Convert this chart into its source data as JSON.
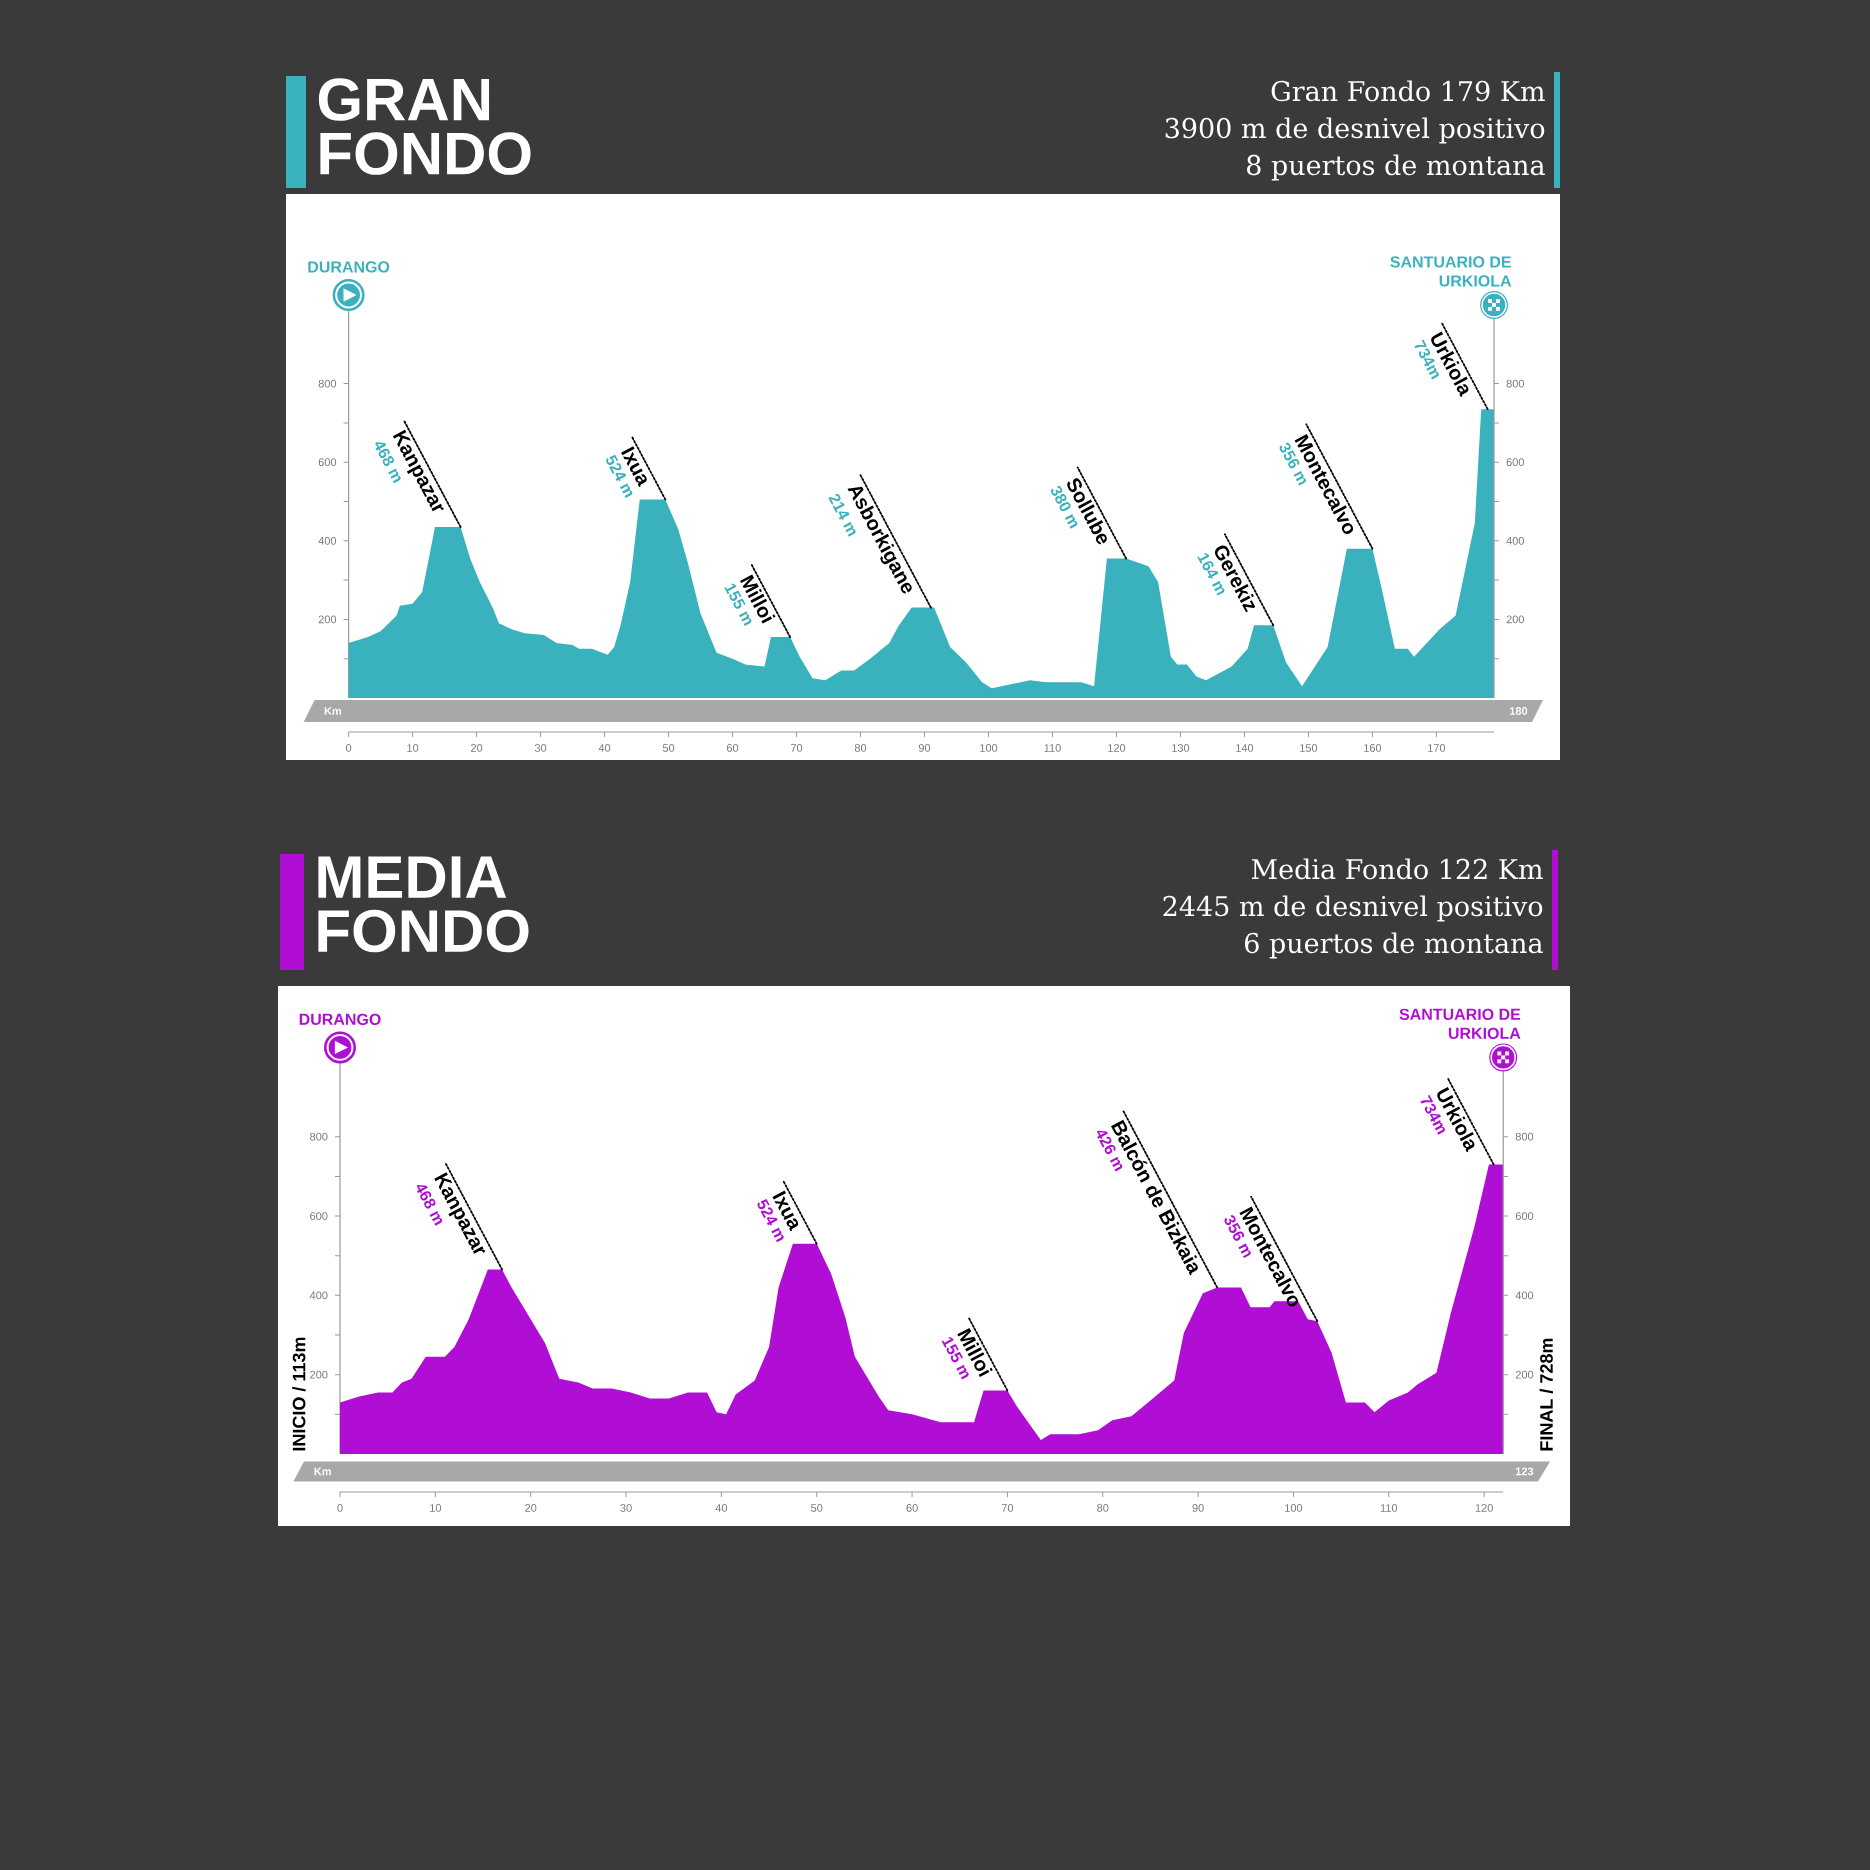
{
  "chart_data": [
    {
      "type": "area",
      "title": "GRAN FONDO",
      "xlabel": "Km",
      "color": "#3ab2be",
      "xlim": [
        0,
        179
      ],
      "xticks": [
        0,
        10,
        20,
        30,
        40,
        50,
        60,
        70,
        80,
        90,
        100,
        110,
        120,
        130,
        140,
        150,
        160,
        170
      ],
      "ylim": [
        0,
        1000
      ],
      "yticks": [
        {
          "value": 100,
          "label": null
        },
        200,
        {
          "value": 300,
          "label": null
        },
        400,
        {
          "value": 500,
          "label": null
        },
        600,
        {
          "value": 700,
          "label": null
        },
        800
      ],
      "y2lim": [
        0,
        1000
      ],
      "y2ticks": [
        {
          "value": 100,
          "label": null
        },
        200,
        {
          "value": 300,
          "label": null
        },
        400,
        {
          "value": 500,
          "label": null
        },
        600,
        {
          "value": 700,
          "label": null
        },
        800
      ],
      "x": [
        0,
        3,
        5,
        7.5,
        8,
        10,
        11.5,
        13.5,
        17.5,
        19,
        20.5,
        22.5,
        23.5,
        25.5,
        27.5,
        30.5,
        32.5,
        35,
        36,
        38,
        40.5,
        41.5,
        42.5,
        44,
        45.5,
        49.5,
        51.5,
        53,
        55,
        57.5,
        60,
        62,
        65,
        66,
        69,
        70.5,
        72.5,
        74.5,
        77,
        79,
        81.5,
        84.5,
        86,
        88,
        91.5,
        94,
        96.5,
        99,
        100.5,
        103.5,
        106.5,
        109,
        114.5,
        116.5,
        118.5,
        121.5,
        125,
        126.5,
        128.5,
        129.5,
        131,
        132.5,
        134,
        138,
        140.5,
        141.5,
        144.5,
        146.5,
        149,
        151,
        153,
        156,
        160,
        161.5,
        163.5,
        165.5,
        166.5,
        168.5,
        170.5,
        173,
        176,
        177,
        179
      ],
      "values": [
        140,
        155,
        170,
        210,
        235,
        240,
        270,
        435,
        435,
        355,
        295,
        230,
        190,
        175,
        165,
        160,
        140,
        135,
        125,
        125,
        110,
        130,
        185,
        295,
        505,
        505,
        430,
        345,
        215,
        115,
        100,
        85,
        80,
        155,
        155,
        105,
        50,
        45,
        70,
        70,
        100,
        140,
        185,
        230,
        230,
        130,
        90,
        40,
        25,
        35,
        45,
        40,
        40,
        30,
        355,
        355,
        335,
        295,
        105,
        85,
        85,
        55,
        45,
        80,
        125,
        185,
        185,
        90,
        30,
        80,
        130,
        380,
        380,
        275,
        125,
        125,
        105,
        140,
        175,
        210,
        445,
        735,
        735
      ],
      "annotations": [
        "Gran Fondo 179 Km",
        "3900 m de desnivel positivo",
        "8 puertos de montana",
        "DURANGO",
        "SANTUARIO DE URKIOLA",
        "180",
        {
          "text": "Kanpazar",
          "x": 17.5,
          "y": 435
        },
        "468 m",
        {
          "text": "Ixua",
          "x": 49.5,
          "y": 505
        },
        "524 m",
        {
          "text": "Milloi",
          "x": 69,
          "y": 155
        },
        "155 m",
        {
          "text": "Asborkigane",
          "x": 91,
          "y": 230
        },
        "214 m",
        {
          "text": "Sollube",
          "x": 121.5,
          "y": 355
        },
        "380 m",
        {
          "text": "Gerekiz",
          "x": 144.5,
          "y": 185
        },
        "164 m",
        {
          "text": "Montecalvo",
          "x": 160,
          "y": 380
        },
        "356 m",
        {
          "text": "Urkiola",
          "x": 178,
          "y": 735
        },
        "734m"
      ]
    },
    {
      "type": "area",
      "title": "MEDIA FONDO",
      "xlabel": "Km",
      "ylabel": "INICIO / 113m",
      "y2label": "FINAL / 728m",
      "color": "#b00ed4",
      "xlim": [
        0,
        122
      ],
      "xticks": [
        0,
        10,
        20,
        30,
        40,
        50,
        60,
        70,
        80,
        90,
        100,
        110,
        120
      ],
      "ylim": [
        0,
        1000
      ],
      "yticks": [
        {
          "value": 100,
          "label": null
        },
        200,
        {
          "value": 300,
          "label": null
        },
        400,
        {
          "value": 500,
          "label": null
        },
        600,
        {
          "value": 700,
          "label": null
        },
        800
      ],
      "y2lim": [
        0,
        1000
      ],
      "y2ticks": [
        {
          "value": 100,
          "label": null
        },
        200,
        {
          "value": 300,
          "label": null
        },
        400,
        {
          "value": 500,
          "label": null
        },
        600,
        {
          "value": 700,
          "label": null
        },
        800
      ],
      "x": [
        0,
        2,
        4,
        5.5,
        6.5,
        7.5,
        9,
        11,
        12,
        13.5,
        15.5,
        17,
        18,
        20,
        21.5,
        23,
        25,
        26.5,
        28.5,
        30.5,
        32.5,
        34.5,
        36.5,
        38.5,
        39.5,
        40.5,
        41.5,
        43.5,
        45,
        46,
        47.5,
        50,
        51.5,
        53,
        54,
        56.5,
        57.5,
        60,
        63,
        66.5,
        67.5,
        70,
        71,
        73.5,
        74.5,
        77.5,
        79.5,
        81,
        83,
        85,
        87.5,
        88.5,
        90.5,
        92,
        94.5,
        95.5,
        97.5,
        98,
        100.5,
        101.5,
        102.5,
        104,
        105.5,
        107.5,
        108.5,
        110,
        112,
        113,
        115,
        116.5,
        119,
        120.5,
        122
      ],
      "values": [
        130,
        145,
        155,
        155,
        180,
        190,
        245,
        245,
        270,
        340,
        465,
        465,
        420,
        340,
        280,
        190,
        180,
        165,
        165,
        155,
        140,
        140,
        155,
        155,
        105,
        100,
        150,
        185,
        270,
        420,
        530,
        530,
        455,
        345,
        245,
        145,
        110,
        100,
        80,
        80,
        160,
        160,
        120,
        35,
        50,
        50,
        60,
        85,
        95,
        135,
        185,
        305,
        405,
        420,
        420,
        370,
        370,
        385,
        385,
        340,
        335,
        255,
        130,
        130,
        105,
        135,
        155,
        175,
        205,
        355,
        575,
        730,
        730
      ],
      "annotations": [
        "Media Fondo 122 Km",
        "2445 m de desnivel positivo",
        "6 puertos de montana",
        "DURANGO",
        "SANTUARIO DE URKIOLA",
        "123",
        {
          "text": "Kanpazar",
          "x": 17,
          "y": 465
        },
        "468 m",
        {
          "text": "Ixua",
          "x": 50,
          "y": 530
        },
        "524 m",
        {
          "text": "Milloi",
          "x": 70,
          "y": 160
        },
        "155 m",
        {
          "text": "Balcón de Bizkaia",
          "x": 92,
          "y": 420
        },
        "426 m",
        {
          "text": "Montecalvo",
          "x": 102.5,
          "y": 335
        },
        "356 m",
        {
          "text": "Urkiola",
          "x": 121,
          "y": 730
        },
        "734m"
      ]
    }
  ]
}
